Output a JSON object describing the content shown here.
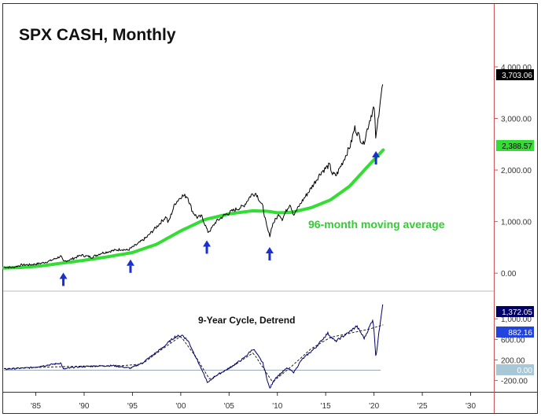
{
  "chart_data": [
    {
      "type": "line",
      "title": "SPX CASH, Monthly",
      "x_range": [
        1981.7,
        2032.4
      ],
      "y_range": [
        -180,
        4350
      ],
      "y_ticks": [
        {
          "value": 0,
          "label": "0.00"
        },
        {
          "value": 1000,
          "label": "1,000.00"
        },
        {
          "value": 2000,
          "label": "2,000.00"
        },
        {
          "value": 3000,
          "label": "3,000.00"
        },
        {
          "value": 4000,
          "label": "4,000.00"
        }
      ],
      "x_ticks": [
        {
          "value": 1985,
          "label": "'85"
        },
        {
          "value": 1990,
          "label": "'90"
        },
        {
          "value": 1995,
          "label": "'95"
        },
        {
          "value": 2000,
          "label": "'00"
        },
        {
          "value": 2005,
          "label": "'05"
        },
        {
          "value": 2010,
          "label": "'10"
        },
        {
          "value": 2015,
          "label": "'15"
        },
        {
          "value": 2020,
          "label": "'20"
        },
        {
          "value": 2025,
          "label": "'25"
        },
        {
          "value": 2030,
          "label": "'30"
        }
      ],
      "series": [
        {
          "name": "SPX",
          "color": "#000000",
          "last_value_label": "3,703.06",
          "points": [
            [
              1981.7,
              120
            ],
            [
              1982.6,
              110
            ],
            [
              1983.5,
              160
            ],
            [
              1984.5,
              165
            ],
            [
              1985.5,
              190
            ],
            [
              1986.5,
              240
            ],
            [
              1987.6,
              330
            ],
            [
              1987.85,
              225
            ],
            [
              1988.6,
              265
            ],
            [
              1989.7,
              350
            ],
            [
              1990.8,
              310
            ],
            [
              1991.8,
              390
            ],
            [
              1992.8,
              430
            ],
            [
              1993.8,
              465
            ],
            [
              1994.5,
              445
            ],
            [
              1995.5,
              560
            ],
            [
              1996.5,
              700
            ],
            [
              1997.5,
              900
            ],
            [
              1998.5,
              1100
            ],
            [
              1998.7,
              970
            ],
            [
              1999.4,
              1350
            ],
            [
              2000.1,
              1500
            ],
            [
              2000.7,
              1490
            ],
            [
              2001.2,
              1200
            ],
            [
              2001.7,
              1080
            ],
            [
              2002.2,
              1100
            ],
            [
              2002.7,
              850
            ],
            [
              2002.8,
              800
            ],
            [
              2003.1,
              840
            ],
            [
              2003.6,
              990
            ],
            [
              2004.5,
              1120
            ],
            [
              2005.5,
              1220
            ],
            [
              2006.5,
              1300
            ],
            [
              2007.3,
              1520
            ],
            [
              2007.8,
              1550
            ],
            [
              2008.5,
              1280
            ],
            [
              2008.9,
              900
            ],
            [
              2009.2,
              720
            ],
            [
              2009.5,
              950
            ],
            [
              2010.2,
              1150
            ],
            [
              2010.5,
              1050
            ],
            [
              2011.3,
              1350
            ],
            [
              2011.7,
              1130
            ],
            [
              2012.5,
              1380
            ],
            [
              2013.5,
              1650
            ],
            [
              2014.5,
              1950
            ],
            [
              2015.4,
              2100
            ],
            [
              2015.7,
              1920
            ],
            [
              2016.1,
              1900
            ],
            [
              2016.8,
              2170
            ],
            [
              2017.6,
              2500
            ],
            [
              2018.0,
              2820
            ],
            [
              2018.9,
              2500
            ],
            [
              2019.6,
              3000
            ],
            [
              2020.0,
              3230
            ],
            [
              2020.2,
              2580
            ],
            [
              2020.6,
              3300
            ],
            [
              2020.95,
              3703
            ]
          ]
        },
        {
          "name": "96-month moving average",
          "color": "#33dd33",
          "last_value_label": "2,388.57",
          "label": "96-month moving average",
          "points": [
            [
              1981.7,
              100
            ],
            [
              1983.5,
              110
            ],
            [
              1985.5,
              140
            ],
            [
              1987.5,
              190
            ],
            [
              1990,
              250
            ],
            [
              1992.5,
              320
            ],
            [
              1995,
              400
            ],
            [
              1997.5,
              560
            ],
            [
              2000,
              820
            ],
            [
              2002.5,
              1040
            ],
            [
              2005,
              1150
            ],
            [
              2007.5,
              1210
            ],
            [
              2009,
              1200
            ],
            [
              2010,
              1170
            ],
            [
              2011.5,
              1180
            ],
            [
              2013.5,
              1270
            ],
            [
              2015.5,
              1420
            ],
            [
              2017.5,
              1690
            ],
            [
              2019.5,
              2100
            ],
            [
              2020.95,
              2388
            ]
          ]
        }
      ],
      "annotations": {
        "label": "96-month moving average",
        "cycle_low_markers": [
          1987.85,
          1994.8,
          2002.7,
          2009.2,
          2020.2
        ]
      }
    },
    {
      "type": "line",
      "title": "9-Year Cycle, Detrend",
      "x_range": [
        1981.7,
        2032.4
      ],
      "y_range": [
        -390,
        1310
      ],
      "y_ticks": [
        {
          "value": -200,
          "label": "-200.00"
        },
        {
          "value": 200,
          "label": "200.00"
        },
        {
          "value": 600,
          "label": "600.00"
        },
        {
          "value": 1000,
          "label": "1,000.00"
        }
      ],
      "series": [
        {
          "name": "Detrend",
          "color": "#000066",
          "last_value_label": "1,372.05",
          "points": [
            [
              1981.7,
              20
            ],
            [
              1984.5,
              50
            ],
            [
              1987.6,
              140
            ],
            [
              1987.85,
              20
            ],
            [
              1989,
              60
            ],
            [
              1991,
              80
            ],
            [
              1993,
              90
            ],
            [
              1994.8,
              40
            ],
            [
              1996,
              140
            ],
            [
              1998,
              420
            ],
            [
              1999.4,
              650
            ],
            [
              2000.2,
              680
            ],
            [
              2000.8,
              560
            ],
            [
              2001.8,
              160
            ],
            [
              2002.8,
              -250
            ],
            [
              2003.5,
              -120
            ],
            [
              2005,
              40
            ],
            [
              2006.5,
              230
            ],
            [
              2007.5,
              420
            ],
            [
              2008.5,
              140
            ],
            [
              2009.2,
              -360
            ],
            [
              2009.8,
              -150
            ],
            [
              2011,
              40
            ],
            [
              2011.7,
              -40
            ],
            [
              2012.5,
              200
            ],
            [
              2014,
              450
            ],
            [
              2015.2,
              720
            ],
            [
              2016,
              560
            ],
            [
              2017.5,
              750
            ],
            [
              2018.2,
              860
            ],
            [
              2019,
              620
            ],
            [
              2019.9,
              1000
            ],
            [
              2020.2,
              250
            ],
            [
              2020.6,
              870
            ],
            [
              2020.95,
              1372
            ]
          ]
        },
        {
          "name": "9-Year Cycle",
          "color": "#222222",
          "dashed": true,
          "last_value_label": "882.16",
          "points": [
            [
              1981.7,
              30
            ],
            [
              1986,
              60
            ],
            [
              1990,
              80
            ],
            [
              1994,
              90
            ],
            [
              1996,
              120
            ],
            [
              1998,
              400
            ],
            [
              2000,
              660
            ],
            [
              2001.5,
              280
            ],
            [
              2003,
              -180
            ],
            [
              2005,
              30
            ],
            [
              2007.5,
              340
            ],
            [
              2009.5,
              -230
            ],
            [
              2011.5,
              80
            ],
            [
              2013.5,
              420
            ],
            [
              2015.5,
              640
            ],
            [
              2017.5,
              720
            ],
            [
              2019.5,
              800
            ],
            [
              2020.95,
              882
            ]
          ]
        },
        {
          "name": "Zero line",
          "color": "#9aaab8",
          "last_value_label": "0.00",
          "points": [
            [
              1981.7,
              0
            ],
            [
              2020.95,
              0
            ]
          ]
        }
      ]
    }
  ]
}
